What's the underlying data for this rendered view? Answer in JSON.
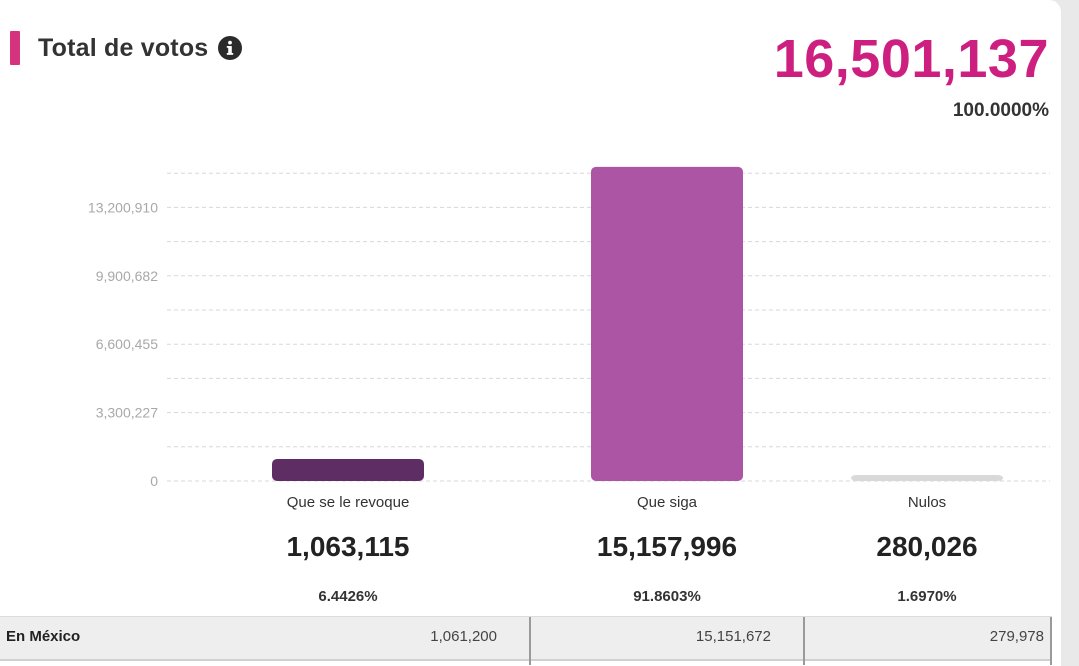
{
  "panel": {
    "title": "Total de votos",
    "info_icon": "info-icon",
    "total_value": "16,501,137",
    "total_pct": "100.0000%"
  },
  "colors": {
    "accent": "#d6337f",
    "total": "#cc1f7f",
    "revoque": "#5e2d63",
    "siga": "#ad55a5",
    "nulos": "#d9d9d9",
    "grid": "#d8d8d8",
    "tick": "#a8a8a8"
  },
  "chart_data": {
    "type": "bar",
    "categories": [
      "Que se le revoque",
      "Que siga",
      "Nulos"
    ],
    "values": [
      1063115,
      15157996,
      280026
    ],
    "value_labels": [
      "1,063,115",
      "15,157,996",
      "280,026"
    ],
    "percentages": [
      "6.4426%",
      "91.8603%",
      "1.6970%"
    ],
    "y_ticks": [
      0,
      3300227,
      6600455,
      9900682,
      13200910
    ],
    "y_tick_labels": [
      "0",
      "3,300,227",
      "6,600,455",
      "9,900,682",
      "13,200,910"
    ],
    "ylim": [
      0,
      15150000
    ],
    "grid": true,
    "title": "Total de votos",
    "xlabel": "",
    "ylabel": ""
  },
  "table": {
    "row_label": "En México",
    "values": [
      "1,061,200",
      "15,151,672",
      "279,978"
    ]
  }
}
